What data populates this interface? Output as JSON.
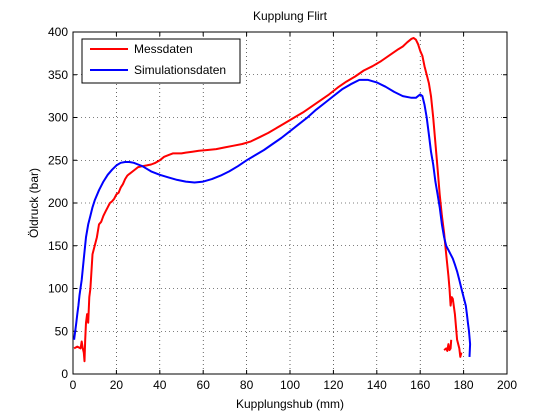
{
  "chart_data": {
    "type": "line",
    "title": "Kupplung Flirt",
    "xlabel": "Kupplungshub (mm)",
    "ylabel": "Öldruck (bar)",
    "xlim": [
      0,
      200
    ],
    "ylim": [
      0,
      400
    ],
    "xticks": [
      "0",
      "20",
      "40",
      "60",
      "80",
      "100",
      "120",
      "140",
      "160",
      "180",
      "200"
    ],
    "yticks": [
      "0",
      "50",
      "100",
      "150",
      "200",
      "250",
      "300",
      "350",
      "400"
    ],
    "grid": "dotted",
    "legend_position": "top-left",
    "series": [
      {
        "name": "Messdaten",
        "color": "#ff0000",
        "points": [
          [
            0.5,
            30
          ],
          [
            2,
            32
          ],
          [
            3.5,
            30
          ],
          [
            4,
            38
          ],
          [
            4.5,
            30
          ],
          [
            5,
            25
          ],
          [
            5.3,
            15
          ],
          [
            5.6,
            40
          ],
          [
            6,
            60
          ],
          [
            6.5,
            70
          ],
          [
            7,
            60
          ],
          [
            7.5,
            90
          ],
          [
            8,
            100
          ],
          [
            9,
            140
          ],
          [
            10,
            150
          ],
          [
            11,
            160
          ],
          [
            12,
            175
          ],
          [
            13,
            178
          ],
          [
            14,
            185
          ],
          [
            15,
            190
          ],
          [
            16,
            195
          ],
          [
            17,
            200
          ],
          [
            18,
            202
          ],
          [
            19,
            205
          ],
          [
            20,
            210
          ],
          [
            21,
            212
          ],
          [
            22,
            218
          ],
          [
            23,
            222
          ],
          [
            24,
            228
          ],
          [
            25,
            232
          ],
          [
            26,
            234
          ],
          [
            28,
            238
          ],
          [
            30,
            242
          ],
          [
            32,
            243
          ],
          [
            34,
            244
          ],
          [
            36,
            245
          ],
          [
            38,
            247
          ],
          [
            40,
            250
          ],
          [
            42,
            254
          ],
          [
            44,
            256
          ],
          [
            46,
            258
          ],
          [
            48,
            258
          ],
          [
            50,
            258
          ],
          [
            52,
            259
          ],
          [
            55,
            260
          ],
          [
            58,
            261
          ],
          [
            62,
            262
          ],
          [
            66,
            263
          ],
          [
            70,
            265
          ],
          [
            74,
            267
          ],
          [
            78,
            269
          ],
          [
            82,
            272
          ],
          [
            86,
            277
          ],
          [
            90,
            282
          ],
          [
            94,
            288
          ],
          [
            98,
            294
          ],
          [
            102,
            300
          ],
          [
            106,
            306
          ],
          [
            110,
            313
          ],
          [
            114,
            320
          ],
          [
            118,
            327
          ],
          [
            122,
            335
          ],
          [
            126,
            342
          ],
          [
            130,
            348
          ],
          [
            134,
            355
          ],
          [
            138,
            360
          ],
          [
            142,
            366
          ],
          [
            146,
            373
          ],
          [
            150,
            380
          ],
          [
            152,
            383
          ],
          [
            154,
            388
          ],
          [
            156,
            392
          ],
          [
            157,
            393
          ],
          [
            158,
            391
          ],
          [
            159,
            386
          ],
          [
            160,
            378
          ],
          [
            161,
            372
          ],
          [
            162,
            360
          ],
          [
            163,
            350
          ],
          [
            164,
            340
          ],
          [
            165,
            325
          ],
          [
            166,
            300
          ],
          [
            167,
            270
          ],
          [
            168,
            240
          ],
          [
            169,
            210
          ],
          [
            170,
            185
          ],
          [
            171,
            165
          ],
          [
            172,
            140
          ],
          [
            173,
            115
          ],
          [
            173.5,
            100
          ],
          [
            174,
            80
          ],
          [
            174.5,
            90
          ],
          [
            175,
            88
          ],
          [
            176,
            70
          ],
          [
            177,
            40
          ],
          [
            178,
            30
          ],
          [
            178.5,
            20
          ],
          [
            179,
            25
          ]
        ],
        "tail_segment": [
          [
            171,
            28
          ],
          [
            172,
            30
          ],
          [
            172.5,
            27
          ],
          [
            173,
            35
          ],
          [
            173.5,
            28
          ],
          [
            174,
            30
          ],
          [
            174.3,
            40
          ]
        ]
      },
      {
        "name": "Simulationsdaten",
        "color": "#0000ff",
        "points": [
          [
            0.5,
            40
          ],
          [
            1,
            50
          ],
          [
            1.5,
            60
          ],
          [
            2,
            70
          ],
          [
            2.5,
            80
          ],
          [
            3,
            92
          ],
          [
            4,
            110
          ],
          [
            5,
            135
          ],
          [
            6,
            160
          ],
          [
            7,
            175
          ],
          [
            8,
            185
          ],
          [
            9,
            195
          ],
          [
            10,
            203
          ],
          [
            12,
            215
          ],
          [
            14,
            225
          ],
          [
            16,
            233
          ],
          [
            18,
            239
          ],
          [
            20,
            244
          ],
          [
            22,
            247
          ],
          [
            24,
            248
          ],
          [
            26,
            248
          ],
          [
            28,
            247
          ],
          [
            30,
            245
          ],
          [
            32,
            243
          ],
          [
            34,
            240
          ],
          [
            36,
            237
          ],
          [
            40,
            233
          ],
          [
            44,
            230
          ],
          [
            48,
            227
          ],
          [
            52,
            225
          ],
          [
            56,
            224
          ],
          [
            60,
            225
          ],
          [
            64,
            228
          ],
          [
            68,
            232
          ],
          [
            72,
            237
          ],
          [
            76,
            243
          ],
          [
            80,
            250
          ],
          [
            84,
            256
          ],
          [
            88,
            262
          ],
          [
            92,
            269
          ],
          [
            96,
            276
          ],
          [
            100,
            284
          ],
          [
            104,
            292
          ],
          [
            108,
            300
          ],
          [
            112,
            309
          ],
          [
            116,
            317
          ],
          [
            120,
            325
          ],
          [
            124,
            333
          ],
          [
            128,
            339
          ],
          [
            132,
            344
          ],
          [
            136,
            344
          ],
          [
            140,
            341
          ],
          [
            144,
            336
          ],
          [
            148,
            330
          ],
          [
            152,
            325
          ],
          [
            156,
            323
          ],
          [
            158,
            323
          ],
          [
            160,
            327
          ],
          [
            161,
            325
          ],
          [
            162,
            315
          ],
          [
            163,
            300
          ],
          [
            164,
            280
          ],
          [
            165,
            260
          ],
          [
            166,
            245
          ],
          [
            167,
            225
          ],
          [
            168,
            210
          ],
          [
            169,
            195
          ],
          [
            170,
            175
          ],
          [
            171,
            160
          ],
          [
            172,
            150
          ],
          [
            173,
            145
          ],
          [
            174,
            140
          ],
          [
            175,
            135
          ],
          [
            176,
            128
          ],
          [
            177,
            120
          ],
          [
            178,
            110
          ],
          [
            179,
            100
          ],
          [
            180,
            90
          ],
          [
            181,
            80
          ],
          [
            181.5,
            70
          ],
          [
            182,
            60
          ],
          [
            182.5,
            50
          ],
          [
            183,
            35
          ],
          [
            182.7,
            20
          ]
        ]
      }
    ]
  }
}
